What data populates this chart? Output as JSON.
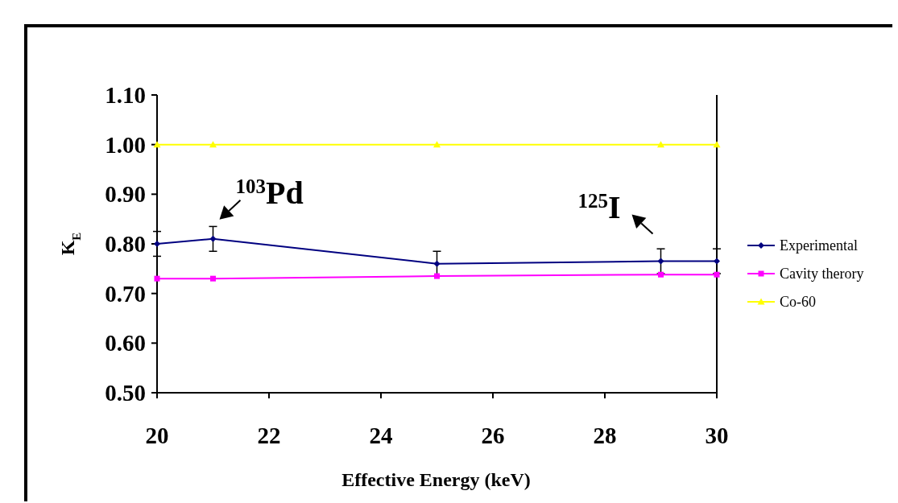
{
  "chart_data": {
    "type": "line",
    "xlabel": "Effective Energy (keV)",
    "ylabel": "K$_{E}$",
    "x": [
      20,
      21,
      25,
      29,
      30
    ],
    "series": [
      {
        "name": "Experimental",
        "color": "#000080",
        "marker": "diamond",
        "values": [
          0.8,
          0.81,
          0.76,
          0.765,
          0.765
        ],
        "errors": [
          0.025,
          0.025,
          0.025,
          0.025,
          0.025
        ]
      },
      {
        "name": "Cavity therory",
        "color": "#ff00ff",
        "marker": "square",
        "values": [
          0.73,
          0.73,
          0.735,
          0.738,
          0.738
        ]
      },
      {
        "name": "Co-60",
        "color": "#ffff00",
        "marker": "triangle",
        "values": [
          1.0,
          1.0,
          1.0,
          1.0,
          1.0
        ]
      }
    ],
    "xlim": [
      20,
      30
    ],
    "xticks": [
      20,
      22,
      24,
      26,
      28,
      30
    ],
    "ylim": [
      0.5,
      1.1
    ],
    "yticks": [
      {
        "value": 0.5,
        "label": "0.50"
      },
      {
        "value": 0.6,
        "label": "0.60"
      },
      {
        "value": 0.7,
        "label": "0.70"
      },
      {
        "value": 0.8,
        "label": "0.80"
      },
      {
        "value": 0.9,
        "label": "0.90"
      },
      {
        "value": 1.0,
        "label": "1.00"
      },
      {
        "value": 1.1,
        "label": "1.10"
      }
    ],
    "legend": "right",
    "grid": false,
    "annotations": [
      {
        "text": "$^{103}$Pd",
        "x": 21,
        "y": 0.81
      },
      {
        "text": "$^{125}$I",
        "x": 29,
        "y": 0.765
      }
    ]
  }
}
